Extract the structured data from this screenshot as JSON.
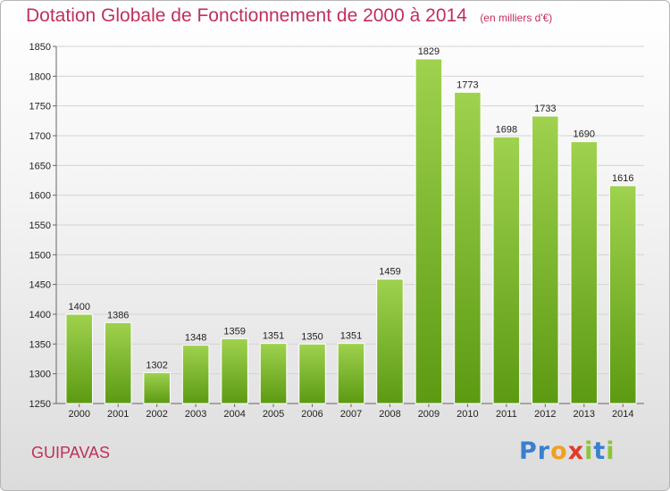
{
  "header": {
    "title": "Dotation Globale de Fonctionnement de 2000 à 2014",
    "unit_note": "(en milliers d'€)"
  },
  "footer": {
    "place": "GUIPAVAS",
    "brand": "Proxiti"
  },
  "colors": {
    "title": "#c0305a",
    "bar_top": "#9fd24e",
    "bar_bottom": "#5c9a12",
    "brand_letters": [
      "#3a7fd0",
      "#3a7fd0",
      "#f0a020",
      "#e23a2a",
      "#8cc43a",
      "#3a7fd0",
      "#8cc43a"
    ]
  },
  "chart_data": {
    "type": "bar",
    "title": "Dotation Globale de Fonctionnement de 2000 à 2014",
    "ylabel": "(en milliers d'€)",
    "xlabel": "",
    "ylim": [
      1250,
      1850
    ],
    "yticks": [
      1250,
      1300,
      1350,
      1400,
      1450,
      1500,
      1550,
      1600,
      1650,
      1700,
      1750,
      1800,
      1850
    ],
    "grid": true,
    "categories": [
      "2000",
      "2001",
      "2002",
      "2003",
      "2004",
      "2005",
      "2006",
      "2007",
      "2008",
      "2009",
      "2010",
      "2011",
      "2012",
      "2013",
      "2014"
    ],
    "values": [
      1400,
      1386,
      1302,
      1348,
      1359,
      1351,
      1350,
      1351,
      1459,
      1829,
      1773,
      1698,
      1733,
      1690,
      1616
    ]
  }
}
